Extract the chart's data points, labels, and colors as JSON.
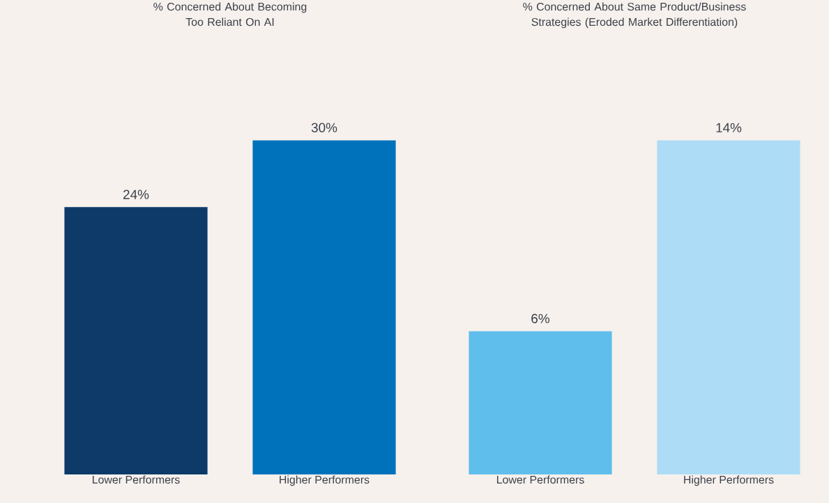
{
  "chart_data": [
    {
      "type": "bar",
      "title": "% Concerned About Becoming\nToo Reliant On AI",
      "categories": [
        "Lower Performers",
        "Higher Performers"
      ],
      "values": [
        24,
        30
      ],
      "colors": [
        "#0d3a69",
        "#0072bc"
      ],
      "value_labels": [
        "24%",
        "30%"
      ]
    },
    {
      "type": "bar",
      "title": "% Concerned About Same Product/Business\nStrategies (Eroded Market Differentiation)",
      "categories": [
        "Lower Performers",
        "Higher Performers"
      ],
      "values": [
        6,
        14
      ],
      "colors": [
        "#5fbeeb",
        "#addcf7"
      ],
      "value_labels": [
        "6%",
        "14%"
      ]
    }
  ]
}
